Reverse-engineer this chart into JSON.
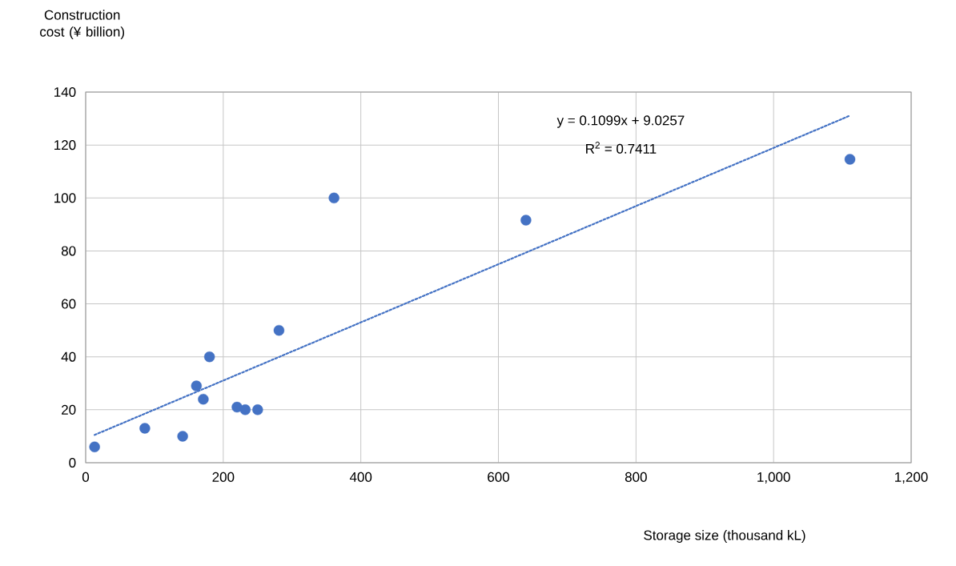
{
  "chart_data": {
    "type": "scatter",
    "xlabel": "Storage size (thousand kL)",
    "ylabel": "Construction cost (¥ billion)",
    "series": [
      {
        "type": "scatter",
        "color": "#4472c4",
        "marker": "circle",
        "x": [
          13,
          86,
          141,
          161,
          171,
          180,
          220,
          232,
          250,
          281,
          361,
          640,
          1111
        ],
        "values": [
          6,
          13,
          10,
          29,
          24,
          40,
          21,
          20,
          20,
          50,
          100,
          91.6,
          114.6
        ]
      },
      {
        "type": "line",
        "color": "#4472c4",
        "marker": "none",
        "line_style": "dotted",
        "x": [
          13,
          1111
        ],
        "values": [
          10.5,
          131.1
        ]
      }
    ],
    "annotations": [
      "y = 0.1099x + 9.0257",
      "R$^{2}$ = 0.7411"
    ],
    "xlim": [
      0,
      1200
    ],
    "xticks": [
      0,
      200,
      400,
      600,
      800,
      {
        "value": 1000,
        "label": "1,000"
      },
      {
        "value": 1200,
        "label": "1,200"
      }
    ],
    "ylim": [
      0,
      140
    ],
    "yticks": [
      0,
      20,
      40,
      60,
      80,
      100,
      120,
      140
    ],
    "grid": true
  }
}
